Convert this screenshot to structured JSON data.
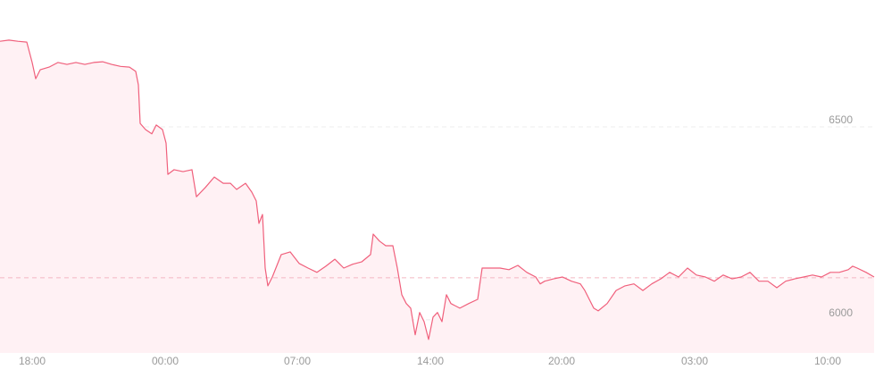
{
  "chart_data": {
    "type": "area",
    "x": [
      0,
      10,
      20,
      30,
      36,
      40,
      45,
      55,
      65,
      75,
      85,
      95,
      105,
      115,
      125,
      135,
      145,
      152,
      155,
      157,
      163,
      170,
      175,
      182,
      186,
      188,
      195,
      205,
      215,
      220,
      230,
      240,
      250,
      258,
      265,
      275,
      282,
      287,
      290,
      294,
      297,
      300,
      305,
      315,
      325,
      335,
      345,
      355,
      365,
      375,
      385,
      395,
      405,
      415,
      418,
      425,
      432,
      440,
      445,
      450,
      455,
      460,
      465,
      470,
      475,
      480,
      485,
      490,
      495,
      500,
      505,
      515,
      525,
      535,
      540,
      550,
      560,
      570,
      580,
      590,
      600,
      605,
      610,
      620,
      630,
      640,
      650,
      655,
      660,
      665,
      670,
      680,
      690,
      700,
      710,
      720,
      730,
      740,
      750,
      760,
      770,
      780,
      790,
      800,
      810,
      820,
      830,
      840,
      850,
      860,
      870,
      880,
      890,
      900,
      910,
      920,
      930,
      940,
      950,
      955,
      960,
      970,
      979
    ],
    "series": [
      {
        "color": "#f0607c",
        "fill": "#fff1f4",
        "values": [
          6722,
          6725,
          6722,
          6720,
          6667,
          6625,
          6648,
          6655,
          6667,
          6662,
          6667,
          6662,
          6667,
          6669,
          6662,
          6657,
          6655,
          6644,
          6609,
          6509,
          6493,
          6482,
          6505,
          6493,
          6458,
          6377,
          6389,
          6384,
          6389,
          6319,
          6343,
          6370,
          6354,
          6354,
          6338,
          6354,
          6331,
          6308,
          6250,
          6273,
          6134,
          6088,
          6111,
          6169,
          6176,
          6146,
          6134,
          6123,
          6139,
          6157,
          6134,
          6144,
          6150,
          6169,
          6222,
          6204,
          6192,
          6192,
          6134,
          6065,
          6042,
          6030,
          5961,
          6019,
          5995,
          5949,
          6007,
          6019,
          5995,
          6065,
          6042,
          6030,
          6042,
          6053,
          6134,
          6134,
          6134,
          6130,
          6141,
          6123,
          6111,
          6093,
          6100,
          6106,
          6111,
          6100,
          6093,
          6076,
          6053,
          6030,
          6023,
          6042,
          6076,
          6088,
          6093,
          6076,
          6093,
          6106,
          6123,
          6111,
          6134,
          6116,
          6111,
          6100,
          6116,
          6106,
          6111,
          6123,
          6100,
          6100,
          6083,
          6100,
          6106,
          6111,
          6116,
          6111,
          6123,
          6123,
          6130,
          6139,
          6134,
          6123,
          6111
        ]
      }
    ],
    "xlim": [
      0,
      979
    ],
    "ylim": [
      5914,
      6829
    ],
    "yticks": [
      6000,
      6500
    ],
    "xticks": [
      {
        "value": 36,
        "label": "18:00"
      },
      {
        "value": 185,
        "label": "00:00"
      },
      {
        "value": 333,
        "label": "07:00"
      },
      {
        "value": 482,
        "label": "14:00"
      },
      {
        "value": 629,
        "label": "20:00"
      },
      {
        "value": 778,
        "label": "03:00"
      },
      {
        "value": 927,
        "label": "10:00"
      }
    ],
    "reference_line": 6109,
    "grid": true
  }
}
